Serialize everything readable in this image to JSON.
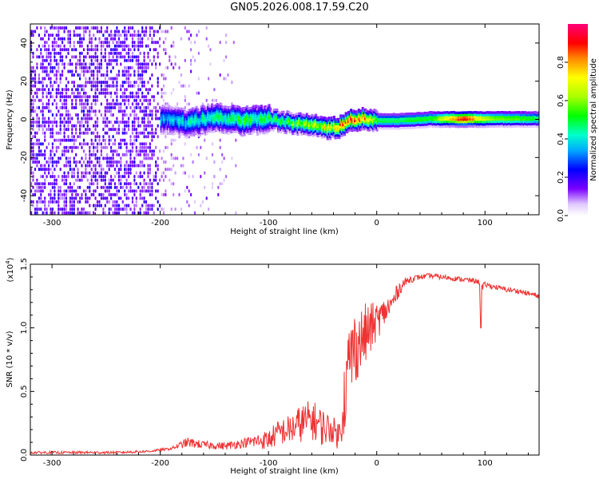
{
  "title": "GN05.2026.008.17.59.C20",
  "chart_data": [
    {
      "type": "heatmap",
      "title": "GN05.2026.008.17.59.C20",
      "xlabel": "Height of straight line (km)",
      "ylabel": "Frequency (Hz)",
      "xlim": [
        -320,
        150
      ],
      "ylim": [
        -50,
        50
      ],
      "xticks": [
        -300,
        -200,
        -100,
        0,
        100
      ],
      "yticks": [
        -40,
        -20,
        0,
        20,
        40
      ],
      "colorbar": {
        "label": "Normalized spectral amplitude",
        "range": [
          0.0,
          1.0
        ],
        "ticks": [
          0.0,
          0.2,
          0.4,
          0.6,
          0.8
        ],
        "tick_labels": [
          "0.0",
          "0.2",
          "0.4",
          "0.6",
          "0.8"
        ]
      },
      "ridge": {
        "x": [
          -195,
          -175,
          -150,
          -125,
          -100,
          -80,
          -60,
          -45,
          -35,
          -25,
          -15,
          0,
          20,
          50,
          80,
          100,
          120,
          150
        ],
        "center_hz": [
          1,
          -1,
          2,
          0,
          1,
          -1,
          -2,
          -4,
          -3,
          0,
          1,
          0,
          0,
          1,
          1,
          1,
          1,
          1
        ],
        "amplitude": [
          0.35,
          0.4,
          0.45,
          0.5,
          0.5,
          0.55,
          0.65,
          0.7,
          0.8,
          0.85,
          0.9,
          0.5,
          0.5,
          0.55,
          0.95,
          0.65,
          0.6,
          0.5
        ]
      }
    },
    {
      "type": "line",
      "xlabel": "Height of straight line (km)",
      "ylabel": "SNR (10 * v/v)",
      "scale_label": "(x10",
      "scale_exponent": "4",
      "xlim": [
        -320,
        150
      ],
      "ylim": [
        0,
        1.5
      ],
      "xticks": [
        -300,
        -200,
        -100,
        0,
        100
      ],
      "yticks": [
        0.0,
        0.5,
        1.0,
        1.5
      ],
      "ytick_labels": [
        "0.0",
        "0.5",
        "1.0",
        "1.5"
      ],
      "series": [
        {
          "name": "SNR",
          "color": "#ee3333",
          "x": [
            -320,
            -280,
            -240,
            -210,
            -190,
            -175,
            -160,
            -140,
            -120,
            -100,
            -90,
            -80,
            -70,
            -60,
            -50,
            -40,
            -35,
            -30,
            -25,
            -20,
            -15,
            -10,
            -5,
            0,
            5,
            10,
            15,
            20,
            25,
            30,
            40,
            50,
            60,
            70,
            80,
            90,
            95,
            96,
            97,
            100,
            110,
            120,
            130,
            140,
            150
          ],
          "values": [
            0.02,
            0.02,
            0.02,
            0.03,
            0.05,
            0.1,
            0.08,
            0.07,
            0.1,
            0.12,
            0.18,
            0.2,
            0.25,
            0.28,
            0.22,
            0.2,
            0.15,
            0.45,
            0.75,
            0.85,
            0.9,
            0.95,
            1.0,
            1.05,
            1.1,
            1.15,
            1.2,
            1.3,
            1.35,
            1.38,
            1.4,
            1.41,
            1.4,
            1.39,
            1.38,
            1.37,
            1.36,
            1.0,
            1.3,
            1.34,
            1.32,
            1.3,
            1.29,
            1.27,
            1.25
          ],
          "noise_amplitude": [
            0.01,
            0.01,
            0.01,
            0.01,
            0.01,
            0.04,
            0.03,
            0.03,
            0.04,
            0.08,
            0.1,
            0.12,
            0.15,
            0.16,
            0.15,
            0.1,
            0.12,
            0.3,
            0.35,
            0.3,
            0.25,
            0.25,
            0.2,
            0.15,
            0.12,
            0.1,
            0.08,
            0.06,
            0.04,
            0.03,
            0.02,
            0.02,
            0.02,
            0.02,
            0.02,
            0.02,
            0.02,
            0.0,
            0.05,
            0.02,
            0.02,
            0.02,
            0.02,
            0.02,
            0.02
          ]
        }
      ]
    }
  ]
}
